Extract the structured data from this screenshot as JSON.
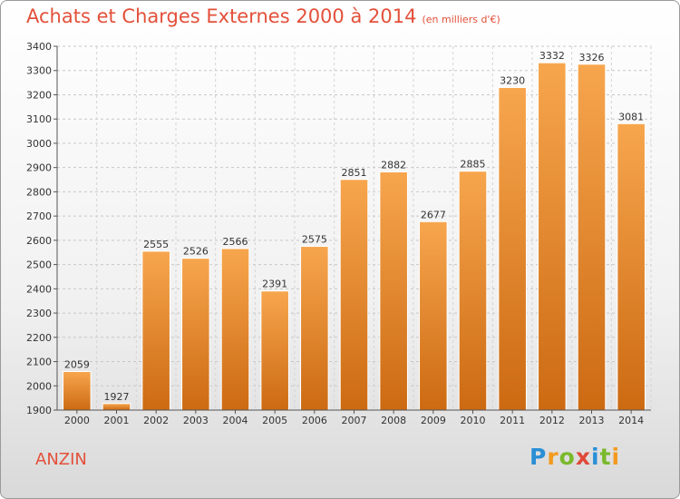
{
  "header": {
    "title": "Achats et Charges Externes 2000 à 2014",
    "subtitle": "(en milliers d'€)"
  },
  "footer": {
    "city": "ANZIN",
    "logo": "Proxiti",
    "logo_colors": [
      "#2a8fd6",
      "#f39a1e",
      "#7ab92c",
      "#e04a3a",
      "#2a8fd6",
      "#7ab92c",
      "#f39a1e"
    ]
  },
  "chart_data": {
    "type": "bar",
    "categories": [
      "2000",
      "2001",
      "2002",
      "2003",
      "2004",
      "2005",
      "2006",
      "2007",
      "2008",
      "2009",
      "2010",
      "2011",
      "2012",
      "2013",
      "2014"
    ],
    "values": [
      2059,
      1927,
      2555,
      2526,
      2566,
      2391,
      2575,
      2851,
      2882,
      2677,
      2885,
      3230,
      3332,
      3326,
      3081
    ],
    "ylim": [
      1900,
      3400
    ],
    "yticks": [
      1900,
      2000,
      2100,
      2200,
      2300,
      2400,
      2500,
      2600,
      2700,
      2800,
      2900,
      3000,
      3100,
      3200,
      3300,
      3400
    ],
    "grid": true,
    "bar_color_top": "#f7a64e",
    "bar_color_bottom": "#cc6a12"
  }
}
